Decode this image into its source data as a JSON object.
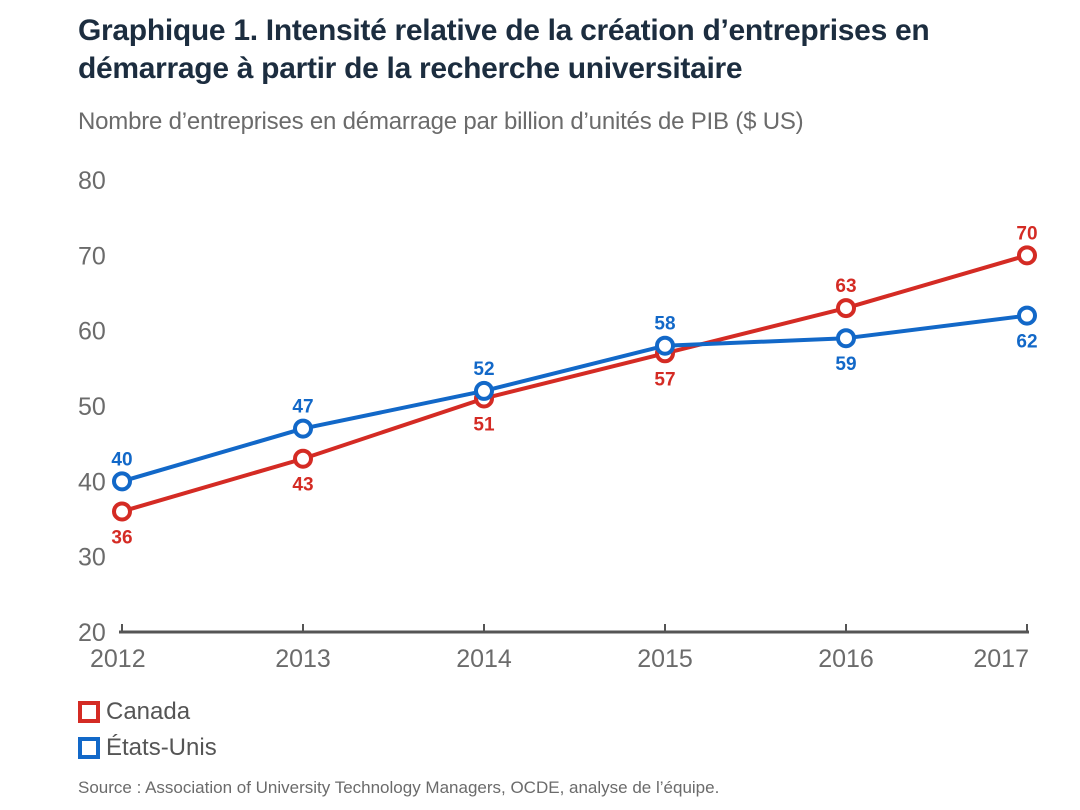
{
  "title": "Graphique 1. Intensité relative de la création d’entreprises en démarrage à partir de la recherche universitaire",
  "subtitle": "Nombre d’entreprises en démarrage par billion d’unités de PIB ($ US)",
  "source": "Source : Association of University Technology Managers, OCDE, analyse de l’équipe.",
  "colors": {
    "canada": "#d42b24",
    "usa": "#1268c8",
    "axis": "#555555",
    "tick_text": "#6b6b6b"
  },
  "chart_data": {
    "type": "line",
    "title": "Graphique 1. Intensité relative de la création d’entreprises en démarrage à partir de la recherche universitaire",
    "subtitle": "Nombre d’entreprises en démarrage par billion d’unités de PIB ($ US)",
    "xlabel": "",
    "ylabel": "Nombre d’entreprises en démarrage par billion d’unités de PIB ($ US)",
    "x": [
      "2012",
      "2013",
      "2014",
      "2015",
      "2016",
      "2017"
    ],
    "ylim": [
      20,
      80
    ],
    "yticks": [
      20,
      30,
      40,
      50,
      60,
      70,
      80
    ],
    "grid": false,
    "legend_position": "bottom-left",
    "series": [
      {
        "name": "Canada",
        "key": "canada",
        "values": [
          36,
          43,
          51,
          57,
          63,
          70
        ],
        "label_positions": [
          "below",
          "below",
          "below",
          "below",
          "above",
          "above"
        ]
      },
      {
        "name": "États-Unis",
        "key": "usa",
        "values": [
          40,
          47,
          52,
          58,
          59,
          62
        ],
        "label_positions": [
          "above",
          "above",
          "above",
          "above",
          "below",
          "below"
        ]
      }
    ]
  }
}
